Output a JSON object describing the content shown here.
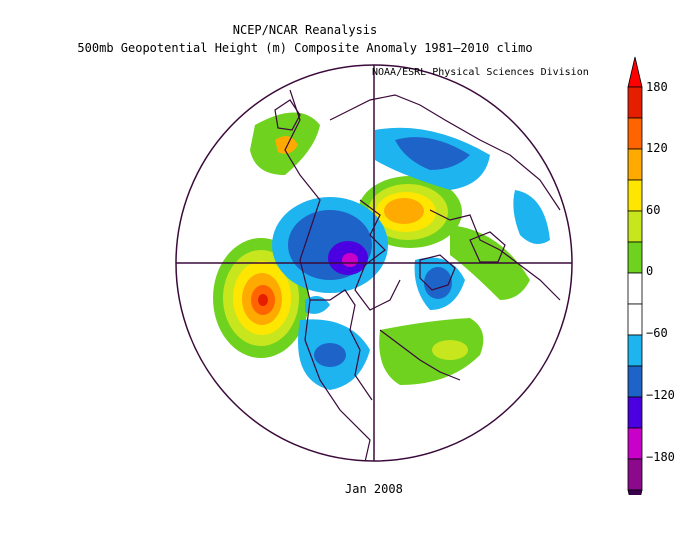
{
  "title": "NCEP/NCAR Reanalysis",
  "subtitle": "500mb Geopotential Height (m) Composite Anomaly 1981–2010 climo",
  "credit": "NOAA/ESRL Physical Sciences Division",
  "date_label": "Jan 2008",
  "colorbar": {
    "ticks": [
      "180",
      "120",
      "60",
      "0",
      "−60",
      "−120",
      "−180"
    ],
    "colors": [
      "#8b0a8b",
      "#c800c8",
      "#4a00e0",
      "#1e64c8",
      "#1eb4f0",
      "#ffffff",
      "#ffffff",
      "#6ed21e",
      "#c8e61e",
      "#ffe600",
      "#ffaa00",
      "#ff6400",
      "#e61e00"
    ],
    "top_color": "#ff0000",
    "bottom_color": "#3c0050"
  },
  "map": {
    "projection": "north polar stereographic",
    "field": "500mb height anomaly"
  }
}
